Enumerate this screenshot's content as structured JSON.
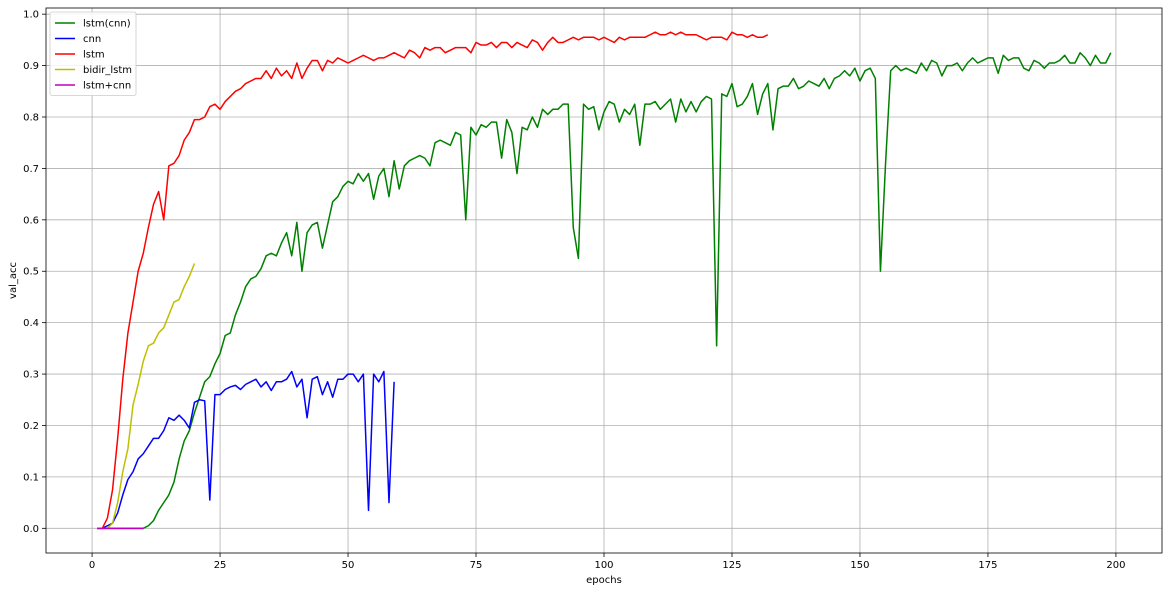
{
  "chart_data": {
    "type": "line",
    "xlabel": "epochs",
    "ylabel": "val_acc",
    "xlim": [
      -9,
      209
    ],
    "ylim": [
      -0.048,
      1.012
    ],
    "xticks": [
      0,
      25,
      50,
      75,
      100,
      125,
      150,
      175,
      200
    ],
    "yticks": [
      0.0,
      0.1,
      0.2,
      0.3,
      0.4,
      0.5,
      0.6,
      0.7,
      0.8,
      0.9,
      1.0
    ],
    "ytick_labels": [
      "0.0",
      "0.1",
      "0.2",
      "0.3",
      "0.4",
      "0.5",
      "0.6",
      "0.7",
      "0.8",
      "0.9",
      "1.0"
    ],
    "grid": true,
    "legend_position": "top-left",
    "series": [
      {
        "name": "lstm(cnn)",
        "color": "#008000",
        "x_start": 1,
        "values": [
          0.0,
          0.0,
          0.0,
          0.0,
          0.0,
          0.0,
          0.0,
          0.0,
          0.0,
          0.0,
          0.005,
          0.015,
          0.035,
          0.05,
          0.065,
          0.09,
          0.135,
          0.17,
          0.19,
          0.225,
          0.255,
          0.285,
          0.295,
          0.32,
          0.34,
          0.375,
          0.38,
          0.415,
          0.44,
          0.47,
          0.485,
          0.49,
          0.505,
          0.53,
          0.535,
          0.53,
          0.555,
          0.575,
          0.53,
          0.595,
          0.5,
          0.575,
          0.59,
          0.595,
          0.545,
          0.59,
          0.635,
          0.645,
          0.665,
          0.675,
          0.67,
          0.69,
          0.675,
          0.69,
          0.64,
          0.685,
          0.7,
          0.645,
          0.715,
          0.66,
          0.705,
          0.715,
          0.72,
          0.725,
          0.72,
          0.705,
          0.75,
          0.755,
          0.75,
          0.745,
          0.77,
          0.765,
          0.6,
          0.78,
          0.765,
          0.785,
          0.78,
          0.79,
          0.79,
          0.72,
          0.795,
          0.77,
          0.69,
          0.78,
          0.775,
          0.8,
          0.78,
          0.815,
          0.805,
          0.815,
          0.815,
          0.825,
          0.825,
          0.585,
          0.525,
          0.825,
          0.815,
          0.82,
          0.775,
          0.81,
          0.83,
          0.825,
          0.79,
          0.815,
          0.805,
          0.825,
          0.745,
          0.825,
          0.825,
          0.83,
          0.815,
          0.825,
          0.835,
          0.79,
          0.835,
          0.81,
          0.83,
          0.81,
          0.83,
          0.84,
          0.835,
          0.355,
          0.845,
          0.84,
          0.865,
          0.82,
          0.825,
          0.84,
          0.865,
          0.805,
          0.845,
          0.865,
          0.775,
          0.855,
          0.86,
          0.86,
          0.875,
          0.855,
          0.86,
          0.87,
          0.865,
          0.86,
          0.875,
          0.855,
          0.875,
          0.88,
          0.89,
          0.88,
          0.895,
          0.87,
          0.89,
          0.895,
          0.875,
          0.5,
          0.71,
          0.89,
          0.9,
          0.89,
          0.895,
          0.89,
          0.885,
          0.905,
          0.89,
          0.91,
          0.905,
          0.88,
          0.9,
          0.9,
          0.905,
          0.89,
          0.905,
          0.915,
          0.905,
          0.91,
          0.915,
          0.915,
          0.885,
          0.92,
          0.91,
          0.915,
          0.915,
          0.895,
          0.89,
          0.91,
          0.905,
          0.895,
          0.905,
          0.905,
          0.91,
          0.92,
          0.905,
          0.905,
          0.925,
          0.915,
          0.9,
          0.92,
          0.905,
          0.905,
          0.925
        ]
      },
      {
        "name": "cnn",
        "color": "#0000ff",
        "x_start": 1,
        "values": [
          0.0,
          0.0,
          0.005,
          0.01,
          0.03,
          0.065,
          0.095,
          0.11,
          0.135,
          0.145,
          0.16,
          0.175,
          0.175,
          0.19,
          0.215,
          0.21,
          0.22,
          0.21,
          0.195,
          0.245,
          0.25,
          0.248,
          0.055,
          0.26,
          0.26,
          0.27,
          0.275,
          0.278,
          0.27,
          0.28,
          0.285,
          0.29,
          0.275,
          0.285,
          0.268,
          0.285,
          0.285,
          0.29,
          0.305,
          0.275,
          0.29,
          0.215,
          0.29,
          0.295,
          0.26,
          0.285,
          0.255,
          0.29,
          0.29,
          0.3,
          0.3,
          0.285,
          0.3,
          0.035,
          0.3,
          0.285,
          0.305,
          0.05,
          0.285
        ]
      },
      {
        "name": "lstm",
        "color": "#ff0000",
        "x_start": 1,
        "values": [
          0.0,
          0.0,
          0.02,
          0.075,
          0.175,
          0.29,
          0.38,
          0.44,
          0.5,
          0.535,
          0.585,
          0.63,
          0.655,
          0.6,
          0.705,
          0.71,
          0.725,
          0.755,
          0.77,
          0.795,
          0.795,
          0.8,
          0.82,
          0.825,
          0.815,
          0.83,
          0.84,
          0.85,
          0.855,
          0.865,
          0.87,
          0.875,
          0.875,
          0.89,
          0.875,
          0.895,
          0.88,
          0.89,
          0.875,
          0.905,
          0.875,
          0.895,
          0.91,
          0.91,
          0.89,
          0.91,
          0.905,
          0.915,
          0.91,
          0.905,
          0.91,
          0.915,
          0.92,
          0.915,
          0.91,
          0.915,
          0.915,
          0.92,
          0.925,
          0.92,
          0.915,
          0.93,
          0.925,
          0.915,
          0.935,
          0.93,
          0.935,
          0.935,
          0.925,
          0.93,
          0.935,
          0.935,
          0.935,
          0.925,
          0.945,
          0.94,
          0.94,
          0.945,
          0.935,
          0.945,
          0.945,
          0.935,
          0.945,
          0.94,
          0.935,
          0.95,
          0.945,
          0.93,
          0.945,
          0.955,
          0.945,
          0.945,
          0.95,
          0.955,
          0.95,
          0.955,
          0.955,
          0.955,
          0.95,
          0.955,
          0.95,
          0.945,
          0.955,
          0.95,
          0.955,
          0.955,
          0.955,
          0.955,
          0.96,
          0.965,
          0.96,
          0.96,
          0.965,
          0.96,
          0.965,
          0.96,
          0.96,
          0.96,
          0.955,
          0.95,
          0.955,
          0.955,
          0.955,
          0.95,
          0.965,
          0.96,
          0.96,
          0.955,
          0.96,
          0.955,
          0.955,
          0.96
        ]
      },
      {
        "name": "bidir_lstm",
        "color": "#bfbf00",
        "x_start": 1,
        "values": [
          0.0,
          0.0,
          0.0,
          0.01,
          0.05,
          0.11,
          0.155,
          0.24,
          0.28,
          0.325,
          0.355,
          0.36,
          0.38,
          0.39,
          0.415,
          0.44,
          0.445,
          0.47,
          0.49,
          0.515
        ]
      },
      {
        "name": "lstm+cnn",
        "color": "#bf00bf",
        "x_start": 1,
        "values": [
          0.0,
          0.0,
          0.0,
          0.0,
          0.0,
          0.0,
          0.0,
          0.0,
          0.0,
          0.0
        ]
      }
    ]
  }
}
